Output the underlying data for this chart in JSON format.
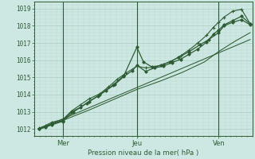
{
  "bg_color": "#cde8e2",
  "plot_bg_color": "#cde8e2",
  "grid_color_major": "#a8ccbf",
  "grid_color_minor": "#bdd9d0",
  "line_color": "#2d5c34",
  "axis_color": "#2d5c34",
  "text_color": "#2d5c34",
  "ylabel_ticks": [
    1012,
    1013,
    1014,
    1015,
    1016,
    1017,
    1018,
    1019
  ],
  "xlabel": "Pression niveau de la mer( hPa )",
  "xtick_labels": [
    "Mer",
    "Jeu",
    "Ven"
  ],
  "xtick_positions": [
    0.13,
    0.47,
    0.845
  ],
  "vline_positions": [
    0.13,
    0.47,
    0.845
  ],
  "ylim": [
    1011.6,
    1019.4
  ],
  "xlim": [
    0.0,
    1.0
  ],
  "lines": [
    {
      "x": [
        0.02,
        0.05,
        0.08,
        0.13,
        0.17,
        0.21,
        0.25,
        0.29,
        0.33,
        0.37,
        0.41,
        0.45,
        0.47,
        0.51,
        0.55,
        0.59,
        0.63,
        0.67,
        0.71,
        0.75,
        0.79,
        0.82,
        0.845,
        0.87,
        0.91,
        0.95,
        0.99
      ],
      "y": [
        1012.0,
        1012.15,
        1012.3,
        1012.5,
        1013.0,
        1013.25,
        1013.6,
        1013.9,
        1014.25,
        1014.6,
        1015.05,
        1015.4,
        1015.7,
        1015.35,
        1015.55,
        1015.65,
        1015.85,
        1016.05,
        1016.35,
        1016.65,
        1017.05,
        1017.5,
        1017.75,
        1018.05,
        1018.3,
        1018.55,
        1018.1
      ],
      "marker": "D",
      "markersize": 1.8,
      "linewidth": 0.9
    },
    {
      "x": [
        0.02,
        0.05,
        0.08,
        0.13,
        0.17,
        0.21,
        0.25,
        0.3,
        0.34,
        0.38,
        0.42,
        0.47,
        0.51,
        0.55,
        0.59,
        0.63,
        0.67,
        0.71,
        0.75,
        0.79,
        0.82,
        0.845,
        0.87,
        0.91,
        0.95,
        0.99
      ],
      "y": [
        1012.05,
        1012.2,
        1012.4,
        1012.55,
        1013.05,
        1013.4,
        1013.75,
        1014.05,
        1014.45,
        1014.9,
        1015.25,
        1015.65,
        1015.55,
        1015.6,
        1015.75,
        1015.95,
        1016.25,
        1016.6,
        1017.0,
        1017.45,
        1017.9,
        1018.2,
        1018.5,
        1018.85,
        1018.95,
        1018.1
      ],
      "marker": "+",
      "markersize": 3.2,
      "linewidth": 0.8
    },
    {
      "x": [
        0.02,
        0.05,
        0.08,
        0.13,
        0.18,
        0.24,
        0.3,
        0.36,
        0.41,
        0.47,
        0.5,
        0.54,
        0.58,
        0.62,
        0.66,
        0.71,
        0.76,
        0.8,
        0.845,
        0.87,
        0.91,
        0.95,
        0.99
      ],
      "y": [
        1012.0,
        1012.1,
        1012.25,
        1012.45,
        1013.0,
        1013.5,
        1014.0,
        1014.55,
        1015.1,
        1016.75,
        1015.9,
        1015.6,
        1015.7,
        1015.9,
        1016.15,
        1016.5,
        1016.9,
        1017.2,
        1017.6,
        1018.0,
        1018.2,
        1018.35,
        1018.05
      ],
      "marker": "D",
      "markersize": 1.8,
      "linewidth": 0.9
    },
    {
      "x": [
        0.02,
        0.13,
        0.25,
        0.36,
        0.47,
        0.58,
        0.68,
        0.78,
        0.845,
        0.92,
        0.99
      ],
      "y": [
        1012.0,
        1012.5,
        1013.1,
        1013.7,
        1014.3,
        1014.8,
        1015.3,
        1015.9,
        1016.5,
        1017.1,
        1017.6
      ],
      "marker": null,
      "markersize": 0,
      "linewidth": 0.75
    },
    {
      "x": [
        0.02,
        0.99
      ],
      "y": [
        1012.0,
        1017.2
      ],
      "marker": null,
      "markersize": 0,
      "linewidth": 0.75
    }
  ]
}
